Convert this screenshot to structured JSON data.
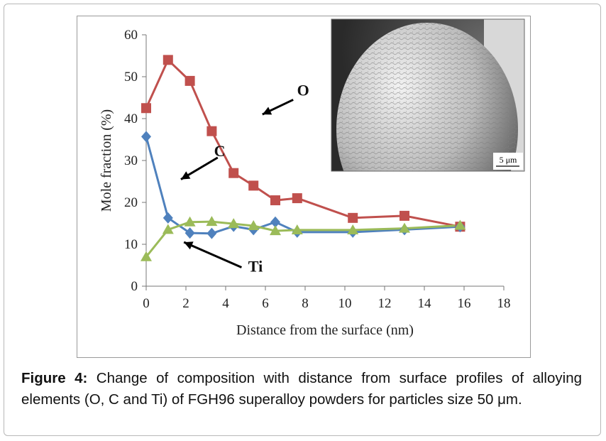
{
  "chart_data": {
    "type": "line",
    "xlabel": "Distance from the surface (nm)",
    "ylabel": "Mole fraction (%)",
    "xlim": [
      0,
      18
    ],
    "ylim": [
      0,
      60
    ],
    "xticks": [
      0,
      2,
      4,
      6,
      8,
      10,
      12,
      14,
      16,
      18
    ],
    "yticks": [
      0,
      10,
      20,
      30,
      40,
      50,
      60
    ],
    "grid": false,
    "legend": "none",
    "series": [
      {
        "name": "O",
        "color": "#c0504d",
        "marker": "square",
        "x": [
          0,
          1.1,
          2.2,
          3.3,
          4.4,
          5.4,
          6.5,
          7.6,
          10.4,
          13,
          15.8
        ],
        "y": [
          42.5,
          54,
          49,
          37,
          27,
          24,
          20.5,
          21,
          16.3,
          16.8,
          14.2
        ]
      },
      {
        "name": "C",
        "color": "#4f81bd",
        "marker": "diamond",
        "x": [
          0,
          1.1,
          2.2,
          3.3,
          4.4,
          5.4,
          6.5,
          7.6,
          10.4,
          13,
          15.8
        ],
        "y": [
          35.7,
          16.3,
          12.7,
          12.6,
          14.3,
          13.5,
          15.3,
          12.9,
          12.9,
          13.5,
          14.2
        ]
      },
      {
        "name": "Ti",
        "color": "#9bbb59",
        "marker": "triangle",
        "x": [
          0,
          1.1,
          2.2,
          3.3,
          4.4,
          5.4,
          6.5,
          7.6,
          10.4,
          13,
          15.8
        ],
        "y": [
          7,
          13.5,
          15.3,
          15.4,
          14.9,
          14.4,
          13.2,
          13.4,
          13.4,
          13.8,
          14.5
        ]
      }
    ],
    "annotations": [
      {
        "text": "O",
        "points_to_series": "O"
      },
      {
        "text": "C",
        "points_to_series": "C"
      },
      {
        "text": "Ti",
        "points_to_series": "Ti"
      }
    ],
    "inset": {
      "description": "SEM micrograph of spherical powder particle",
      "scale_bar": "5 μm"
    }
  },
  "caption": {
    "label": "Figure 4:",
    "text": " Change of composition with distance from surface profiles of alloying elements (O, C and Ti) of FGH96 superalloy powders for particles size 50 μm."
  }
}
